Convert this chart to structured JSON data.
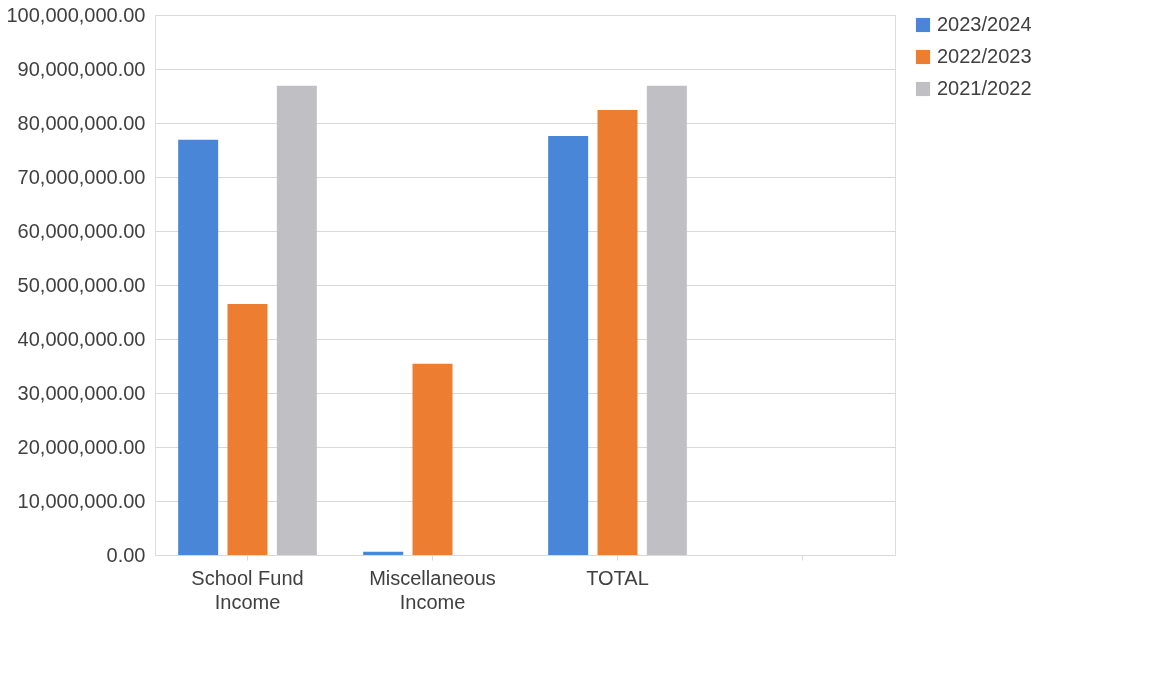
{
  "chart_data": {
    "type": "bar",
    "categories": [
      "School Fund Income",
      "Miscellaneous Income",
      "TOTAL",
      null
    ],
    "series": [
      {
        "name": "2023/2024",
        "color": "#4a86d8",
        "values": [
          76900000,
          600000,
          77600000,
          null
        ]
      },
      {
        "name": "2022/2023",
        "color": "#ed7d31",
        "values": [
          46500000,
          35400000,
          82400000,
          null
        ]
      },
      {
        "name": "2021/2022",
        "color": "#bfbfc4",
        "values": [
          86900000,
          null,
          86900000,
          null
        ]
      }
    ],
    "ylim": [
      0,
      100000000
    ],
    "yticks": [
      {
        "value": 0,
        "label": "0.00"
      },
      {
        "value": 10000000,
        "label": "10,000,000.00"
      },
      {
        "value": 20000000,
        "label": "20,000,000.00"
      },
      {
        "value": 30000000,
        "label": "30,000,000.00"
      },
      {
        "value": 40000000,
        "label": "40,000,000.00"
      },
      {
        "value": 50000000,
        "label": "50,000,000.00"
      },
      {
        "value": 60000000,
        "label": "60,000,000.00"
      },
      {
        "value": 70000000,
        "label": "70,000,000.00"
      },
      {
        "value": 80000000,
        "label": "80,000,000.00"
      },
      {
        "value": 90000000,
        "label": "90,000,000.00"
      },
      {
        "value": 100000000,
        "label": "100,000,000.00"
      }
    ],
    "grid": "y",
    "legend": "right"
  }
}
